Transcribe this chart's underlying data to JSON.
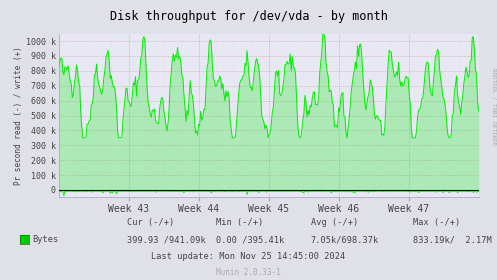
{
  "title": "Disk throughput for /dev/vda - by month",
  "ylabel": "Pr second read (-) / write (+)",
  "xlabel_weeks": [
    "Week 43",
    "Week 44",
    "Week 45",
    "Week 46",
    "Week 47"
  ],
  "ylim": [
    -50000,
    1050000
  ],
  "yticks": [
    0,
    100000,
    200000,
    300000,
    400000,
    500000,
    600000,
    700000,
    800000,
    900000,
    1000000
  ],
  "ytick_labels": [
    "0",
    "100 k",
    "200 k",
    "300 k",
    "400 k",
    "500 k",
    "600 k",
    "700 k",
    "800 k",
    "900 k",
    "1000 k"
  ],
  "bg_color": "#e0e0e8",
  "plot_bg_color": "#e8e8f4",
  "grid_color_major": "#cc9999",
  "grid_color_minor": "#ddbbbb",
  "line_color": "#00ee00",
  "line_color_dark": "#006600",
  "legend_sq_color": "#00cc00",
  "title_color": "#000000",
  "legend_text": "Bytes",
  "cur_label": "Cur (-/+)",
  "min_label": "Min (-/+)",
  "avg_label": "Avg (-/+)",
  "max_label": "Max (-/+)",
  "cur_val": "399.93 /941.09k",
  "min_val": "0.00 /395.41k",
  "avg_val": "7.05k/698.37k",
  "max_val": "833.19k/  2.17M",
  "last_update": "Last update: Mon Nov 25 14:45:00 2024",
  "munin_version": "Munin 2.0.33-1",
  "right_label": "RRDTOOL / TOBI OETIKER",
  "n_points": 400,
  "seed": 42
}
